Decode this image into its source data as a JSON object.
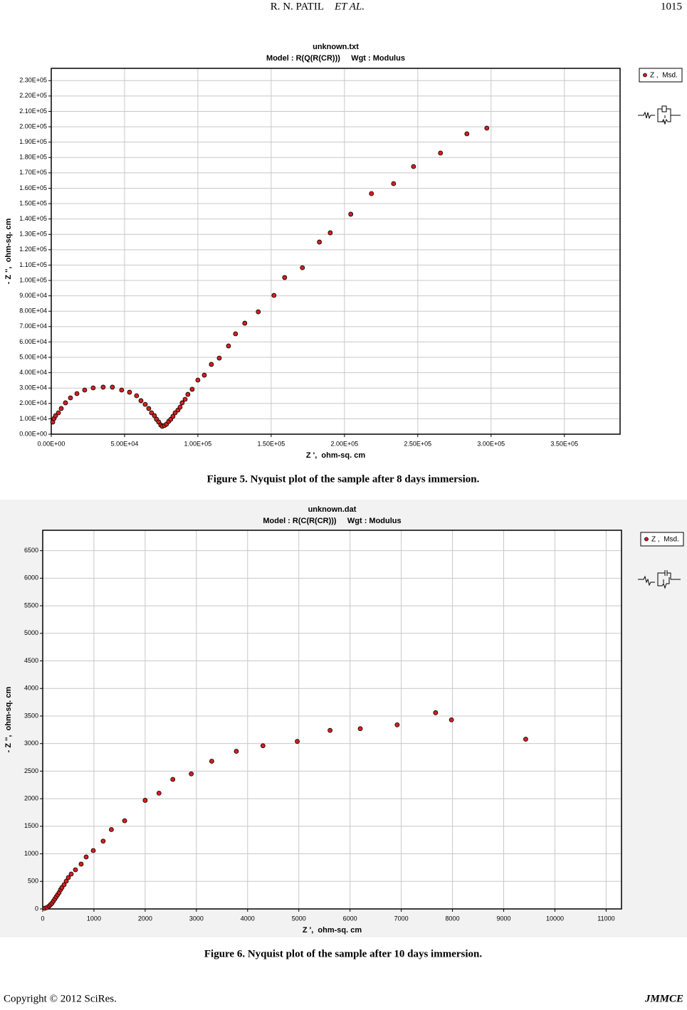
{
  "header": {
    "author": "R. N. PATIL",
    "etal": "ET AL.",
    "page": "1015"
  },
  "footer": {
    "copyright": "Copyright © 2012 SciRes.",
    "journal": "JMMCE"
  },
  "chart_data": [
    {
      "type": "scatter",
      "title": "unknown.txt",
      "subtitle": "Model : R(Q(R(CR)))     Wgt : Modulus",
      "x_label": "Z ',  ohm-sq. cm",
      "y_label": "- Z '',  ohm-sq. cm",
      "caption": "Figure 5. Nyquist plot of the sample after 8 days immersion.",
      "grid": true,
      "legend": "top-right",
      "xlim": [
        0,
        388000
      ],
      "ylim": [
        0,
        238000
      ],
      "xticks": [
        {
          "value": 0,
          "label": "0.00E+00"
        },
        {
          "value": 50000,
          "label": "5.00E+04"
        },
        {
          "value": 100000,
          "label": "1.00E+05"
        },
        {
          "value": 150000,
          "label": "1.50E+05"
        },
        {
          "value": 200000,
          "label": "2.00E+05"
        },
        {
          "value": 250000,
          "label": "2.50E+05"
        },
        {
          "value": 300000,
          "label": "3.00E+05"
        },
        {
          "value": 350000,
          "label": "3.50E+05"
        }
      ],
      "yticks": [
        {
          "value": 0,
          "label": "0.00E+00"
        },
        {
          "value": 10000,
          "label": "1.00E+04"
        },
        {
          "value": 20000,
          "label": "2.00E+04"
        },
        {
          "value": 30000,
          "label": "3.00E+04"
        },
        {
          "value": 40000,
          "label": "4.00E+04"
        },
        {
          "value": 50000,
          "label": "5.00E+04"
        },
        {
          "value": 60000,
          "label": "6.00E+04"
        },
        {
          "value": 70000,
          "label": "7.00E+04"
        },
        {
          "value": 80000,
          "label": "8.00E+04"
        },
        {
          "value": 90000,
          "label": "9.00E+04"
        },
        {
          "value": 100000,
          "label": "1.00E+05"
        },
        {
          "value": 110000,
          "label": "1.10E+05"
        },
        {
          "value": 120000,
          "label": "1.20E+05"
        },
        {
          "value": 130000,
          "label": "1.30E+05"
        },
        {
          "value": 140000,
          "label": "1.40E+05"
        },
        {
          "value": 150000,
          "label": "1.50E+05"
        },
        {
          "value": 160000,
          "label": "1.60E+05"
        },
        {
          "value": 170000,
          "label": "1.70E+05"
        },
        {
          "value": 180000,
          "label": "1.80E+05"
        },
        {
          "value": 190000,
          "label": "1.90E+05"
        },
        {
          "value": 200000,
          "label": "2.00E+05"
        },
        {
          "value": 210000,
          "label": "2.10E+05"
        },
        {
          "value": 220000,
          "label": "2.20E+05"
        },
        {
          "value": 230000,
          "label": "2.30E+05"
        }
      ],
      "series": [
        {
          "name": "Z ,  Msd.",
          "color": "#d42020",
          "x": [
            1000,
            1900,
            2900,
            4900,
            6800,
            9700,
            13100,
            17500,
            22800,
            28600,
            35400,
            41700,
            48000,
            53400,
            58200,
            61200,
            64100,
            66500,
            68400,
            70400,
            71800,
            73300,
            74700,
            75700,
            77200,
            78600,
            80100,
            81500,
            83000,
            84500,
            86400,
            87900,
            89300,
            91300,
            93200,
            96100,
            100000,
            104400,
            109200,
            114600,
            120900,
            125700,
            132000,
            141200,
            151900,
            159200,
            171300,
            182900,
            190300,
            204300,
            218400,
            233500,
            247100,
            265500,
            283500,
            297100
          ],
          "values": [
            7900,
            10200,
            12000,
            13900,
            16700,
            20400,
            23600,
            26400,
            28700,
            30100,
            30600,
            30600,
            28700,
            27300,
            25000,
            21800,
            19400,
            16700,
            13900,
            12000,
            9700,
            7900,
            6000,
            5100,
            5600,
            6500,
            8300,
            9700,
            11600,
            13900,
            15700,
            17600,
            20400,
            22700,
            25900,
            29200,
            35200,
            38400,
            45400,
            49500,
            57400,
            65300,
            72200,
            79600,
            90300,
            101900,
            108300,
            125000,
            131000,
            143100,
            156500,
            163000,
            174100,
            182900,
            195400,
            199100
          ]
        }
      ]
    },
    {
      "type": "scatter",
      "title": "unknown.dat",
      "subtitle": "Model : R(C(R(CR)))     Wgt : Modulus",
      "x_label": "Z ',  ohm-sq. cm",
      "y_label": "- Z '',  ohm-sq. cm",
      "caption": "Figure 6. Nyquist plot of the sample after 10 days immersion.",
      "grid": true,
      "legend": "top-right",
      "xlim": [
        0,
        11300
      ],
      "ylim": [
        0,
        6870
      ],
      "xticks": [
        0,
        1000,
        2000,
        3000,
        4000,
        5000,
        6000,
        7000,
        8000,
        9000,
        10000,
        11000
      ],
      "yticks": [
        0,
        500,
        1000,
        1500,
        2000,
        2500,
        3000,
        3500,
        4000,
        4500,
        5000,
        5500,
        6000,
        6500
      ],
      "series": [
        {
          "name": "Z ,  Msd.",
          "color": "#d42020",
          "x": [
            40,
            83,
            125,
            153,
            181,
            208,
            236,
            264,
            292,
            320,
            348,
            375,
            417,
            459,
            500,
            556,
            639,
            750,
            848,
            987,
            1180,
            1340,
            1600,
            2000,
            2270,
            2540,
            2900,
            3300,
            3780,
            4300,
            4970,
            5610,
            6200,
            6920,
            7670,
            7980,
            9430
          ],
          "values": [
            13,
            26,
            52,
            78,
            103,
            142,
            181,
            220,
            258,
            297,
            349,
            388,
            439,
            504,
            568,
            633,
            710,
            814,
            943,
            1059,
            1230,
            1440,
            1600,
            1970,
            2100,
            2350,
            2450,
            2680,
            2860,
            2960,
            3040,
            3240,
            3270,
            3340,
            3560,
            3430,
            3080
          ]
        }
      ]
    }
  ]
}
